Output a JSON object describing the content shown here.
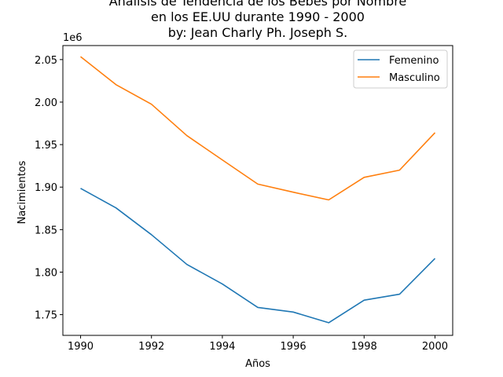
{
  "chart_data": {
    "type": "line",
    "title_lines": [
      "Análisis de Tendencia de los Bebes por Nombre",
      "en los EE.UU durante 1990 - 2000",
      "by: Jean Charly Ph. Joseph S."
    ],
    "xlabel": "Años",
    "ylabel": "Nacimientos",
    "y_offset_label": "1e6",
    "x_ticks": [
      1990,
      1992,
      1994,
      1996,
      1998,
      2000
    ],
    "y_ticks": [
      "1.75",
      "1.80",
      "1.85",
      "1.90",
      "1.95",
      "2.00",
      "2.05"
    ],
    "xlim": [
      1989.5,
      2000.5
    ],
    "ylim": [
      1.7256,
      2.0665
    ],
    "legend_position": "top-right",
    "x": [
      1990,
      1991,
      1992,
      1993,
      1994,
      1995,
      1996,
      1997,
      1998,
      1999,
      2000
    ],
    "series": [
      {
        "name": "Femenino",
        "color": "#1f77b4",
        "values": [
          1.8985,
          1.8755,
          1.844,
          1.809,
          1.786,
          1.7585,
          1.753,
          1.7405,
          1.767,
          1.774,
          1.816
        ]
      },
      {
        "name": "Masculino",
        "color": "#ff7f0e",
        "values": [
          2.0535,
          2.0205,
          1.9975,
          1.9605,
          1.932,
          1.9035,
          1.894,
          1.885,
          1.9115,
          1.92,
          1.964
        ]
      }
    ]
  }
}
